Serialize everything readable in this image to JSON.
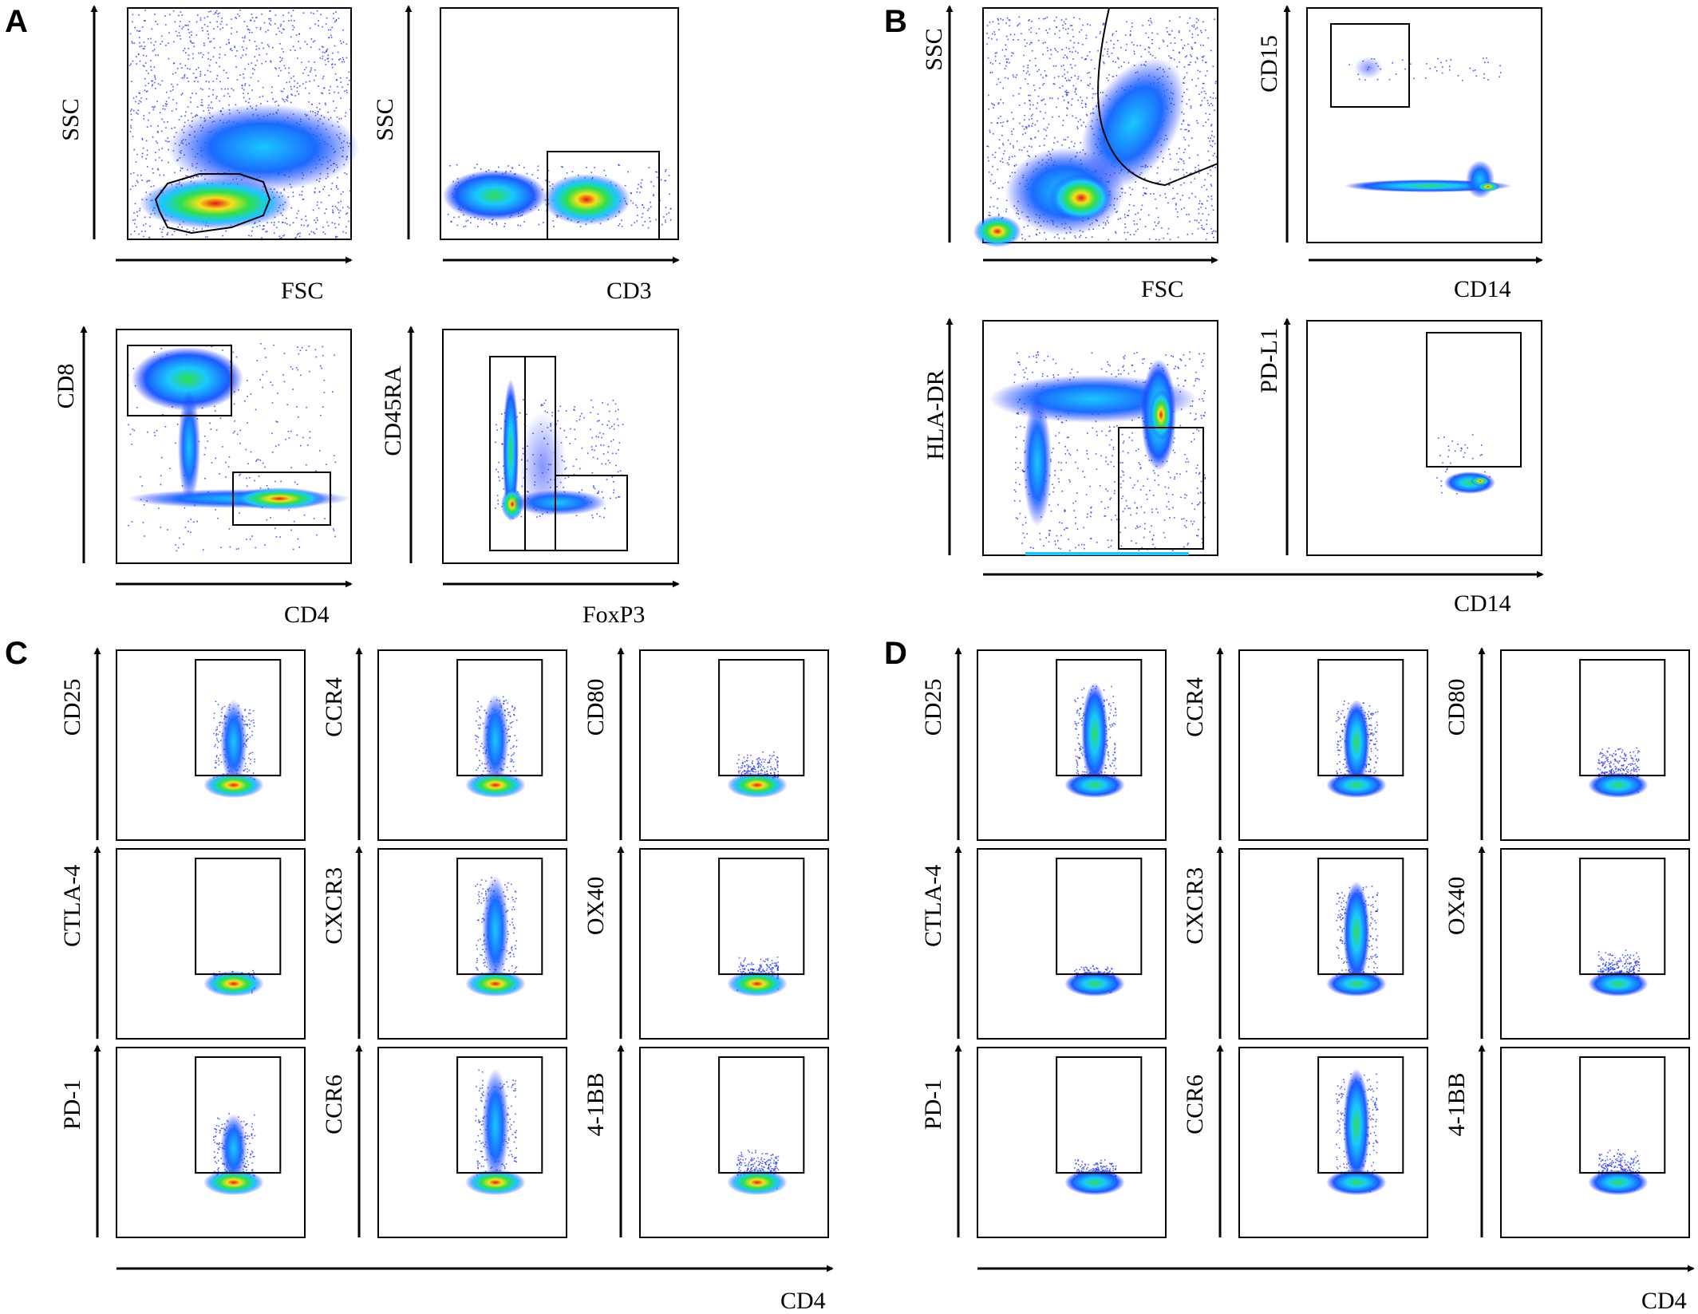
{
  "panel_letters": [
    "A",
    "B",
    "C",
    "D"
  ],
  "colors": {
    "density_low": "#1a2bff",
    "density_mid": "#19c8ff",
    "density_high": "#2fe04a",
    "density_higher": "#f5e11a",
    "density_peak": "#e8151b",
    "axis": "#000000",
    "gate": "#000000"
  },
  "panel_A": {
    "plots": [
      {
        "x_label": "FSC",
        "y_label": "SSC"
      },
      {
        "x_label": "CD3",
        "y_label": "SSC"
      },
      {
        "x_label": "CD4",
        "y_label": "CD8"
      },
      {
        "x_label": "FoxP3",
        "y_label": "CD45RA"
      }
    ]
  },
  "panel_B": {
    "plots": [
      {
        "x_label": "FSC",
        "y_label": "SSC"
      },
      {
        "x_label": "CD14",
        "y_label": "CD15"
      },
      {
        "x_label": "",
        "y_label": "HLA-DR"
      },
      {
        "x_label": "",
        "y_label": "PD-L1"
      }
    ],
    "shared_x_label": "CD14"
  },
  "panel_C": {
    "rows": [
      [
        "CD25",
        "CCR4",
        "CD80"
      ],
      [
        "CTLA-4",
        "CXCR3",
        "OX40"
      ],
      [
        "PD-1",
        "CCR6",
        "4-1BB"
      ]
    ],
    "shared_x_label": "CD4"
  },
  "panel_D": {
    "rows": [
      [
        "CD25",
        "CCR4",
        "CD80"
      ],
      [
        "CTLA-4",
        "CXCR3",
        "OX40"
      ],
      [
        "PD-1",
        "CCR6",
        "4-1BB"
      ]
    ],
    "shared_x_label": "CD4"
  }
}
